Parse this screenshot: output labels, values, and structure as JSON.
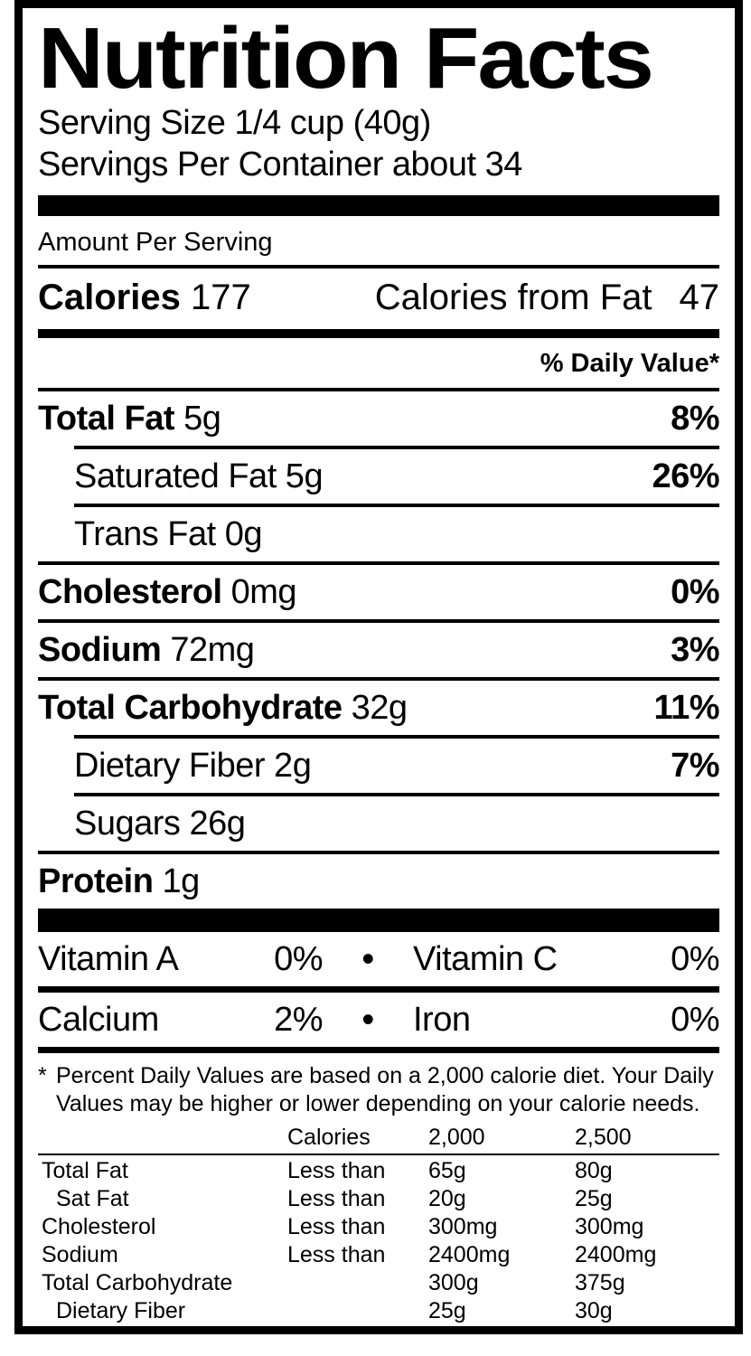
{
  "title": "Nutrition Facts",
  "serving": {
    "size": "Serving Size 1/4 cup (40g)",
    "per_container": "Servings Per Container about 34"
  },
  "amount_per_serving": "Amount Per Serving",
  "calories": {
    "label": "Calories",
    "value": "177",
    "from_fat_label": "Calories from Fat",
    "from_fat_value": "47"
  },
  "daily_value_header": "% Daily Value*",
  "nutrients": [
    {
      "name": "Total Fat",
      "amount": "5g",
      "dv": "8%",
      "bold": true,
      "indent": 0
    },
    {
      "name": "Saturated Fat",
      "amount": "5g",
      "dv": "26%",
      "bold": false,
      "indent": 1
    },
    {
      "name": "Trans Fat",
      "amount": "0g",
      "dv": "",
      "bold": false,
      "indent": 1
    },
    {
      "name": "Cholesterol",
      "amount": "0mg",
      "dv": "0%",
      "bold": true,
      "indent": 0
    },
    {
      "name": "Sodium",
      "amount": "72mg",
      "dv": "3%",
      "bold": true,
      "indent": 0
    },
    {
      "name": "Total Carbohydrate",
      "amount": "32g",
      "dv": "11%",
      "bold": true,
      "indent": 0
    },
    {
      "name": "Dietary Fiber",
      "amount": "2g",
      "dv": "7%",
      "bold": false,
      "indent": 1
    },
    {
      "name": "Sugars",
      "amount": "26g",
      "dv": "",
      "bold": false,
      "indent": 1
    },
    {
      "name": "Protein",
      "amount": "1g",
      "dv": "",
      "bold": true,
      "indent": 0
    }
  ],
  "separator_bullet": "•",
  "vitamins": [
    {
      "left_name": "Vitamin A",
      "left_value": "0%",
      "right_name": "Vitamin C",
      "right_value": "0%"
    },
    {
      "left_name": "Calcium",
      "left_value": "2%",
      "right_name": "Iron",
      "right_value": "0%"
    }
  ],
  "footnote": {
    "marker": "*",
    "line1": "Percent Daily Values are based on a 2,000 calorie diet. Your Daily",
    "line2": "Values may be higher or lower depending on your calorie needs."
  },
  "dv_table": {
    "headers": {
      "col2": "Calories",
      "col3": "2,000",
      "col4": "2,500"
    },
    "rows": [
      {
        "name": "Total Fat",
        "qualifier": "Less than",
        "v2000": "65g",
        "v2500": "80g",
        "indent": 0
      },
      {
        "name": "Sat Fat",
        "qualifier": "Less than",
        "v2000": "20g",
        "v2500": "25g",
        "indent": 1
      },
      {
        "name": "Cholesterol",
        "qualifier": "Less than",
        "v2000": "300mg",
        "v2500": "300mg",
        "indent": 0
      },
      {
        "name": "Sodium",
        "qualifier": "Less than",
        "v2000": "2400mg",
        "v2500": "2400mg",
        "indent": 0
      },
      {
        "name": "Total Carbohydrate",
        "qualifier": "",
        "v2000": "300g",
        "v2500": "375g",
        "indent": 0
      },
      {
        "name": "Dietary Fiber",
        "qualifier": "",
        "v2000": "25g",
        "v2500": "30g",
        "indent": 1
      }
    ]
  },
  "colors": {
    "ink": "#000000",
    "paper": "#ffffff"
  }
}
